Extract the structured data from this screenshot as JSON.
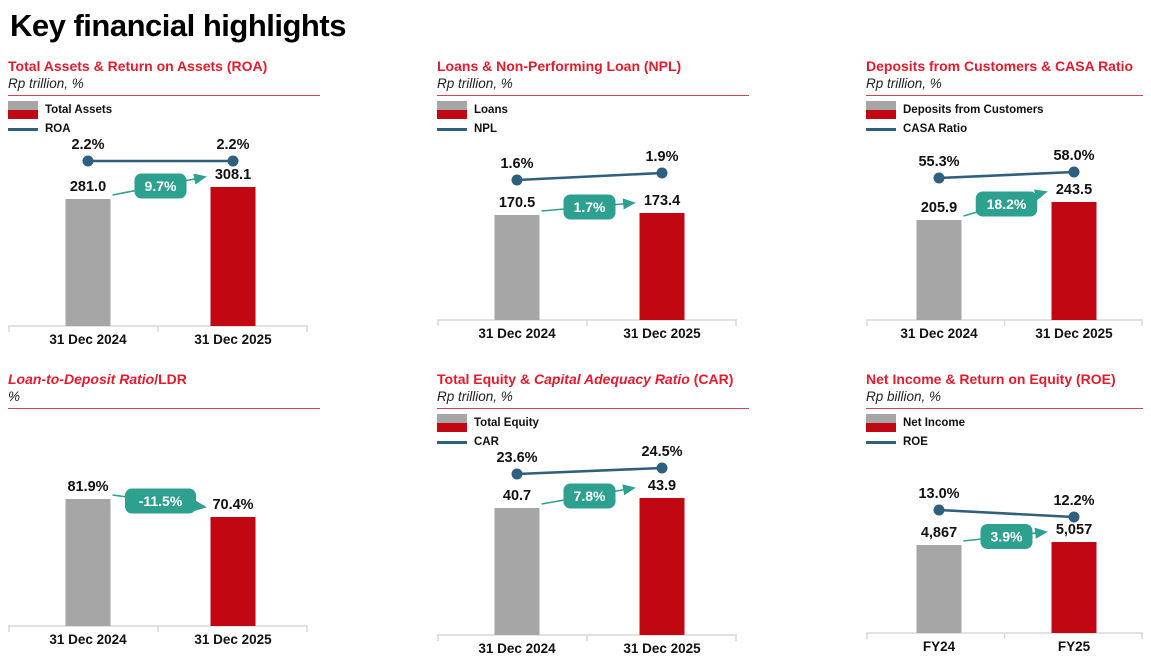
{
  "page": {
    "title": "Key financial highlights"
  },
  "colors": {
    "title_red": "#E41B2C",
    "rule_red": "#D04553",
    "bar_prev": "#A6A6A6",
    "bar_curr": "#C00712",
    "line_blue": "#2E5F7F",
    "badge_teal": "#2EA08F",
    "badge_text": "#FFFFFF",
    "axis_gray": "#D9D9D9",
    "label_dark": "#111111"
  },
  "chart_data": [
    {
      "id": "total-assets-roa",
      "type": "bar-line",
      "title_parts": [
        {
          "text": "Total Assets & Return on Assets (ROA)",
          "italic": false
        }
      ],
      "subtitle": "Rp trillion, %",
      "categories": [
        "31 Dec 2024",
        "31 Dec 2025"
      ],
      "bar_series": {
        "name": "Total Assets",
        "values": [
          281.0,
          308.1
        ],
        "labels": [
          "281.0",
          "308.1"
        ]
      },
      "line_series": {
        "name": "ROA",
        "values": [
          2.2,
          2.2
        ],
        "labels": [
          "2.2%",
          "2.2%"
        ]
      },
      "growth_badge": "9.7%",
      "show_legend": true
    },
    {
      "id": "loans-npl",
      "type": "bar-line",
      "title_parts": [
        {
          "text": "Loans & Non-Performing Loan (NPL)",
          "italic": false
        }
      ],
      "subtitle": "Rp trillion, %",
      "categories": [
        "31 Dec 2024",
        "31 Dec 2025"
      ],
      "bar_series": {
        "name": "Loans",
        "values": [
          170.5,
          173.4
        ],
        "labels": [
          "170.5",
          "173.4"
        ]
      },
      "line_series": {
        "name": "NPL",
        "values": [
          1.6,
          1.9
        ],
        "labels": [
          "1.6%",
          "1.9%"
        ]
      },
      "growth_badge": "1.7%",
      "show_legend": true
    },
    {
      "id": "deposits-casa",
      "type": "bar-line",
      "title_parts": [
        {
          "text": "Deposits from Customers & CASA Ratio",
          "italic": false
        }
      ],
      "subtitle": "Rp trillion, %",
      "categories": [
        "31 Dec 2024",
        "31 Dec 2025"
      ],
      "bar_series": {
        "name": "Deposits from Customers",
        "values": [
          205.9,
          243.5
        ],
        "labels": [
          "205.9",
          "243.5"
        ]
      },
      "line_series": {
        "name": "CASA Ratio",
        "values": [
          55.3,
          58.0
        ],
        "labels": [
          "55.3%",
          "58.0%"
        ]
      },
      "growth_badge": "18.2%",
      "show_legend": true
    },
    {
      "id": "ldr",
      "type": "bar",
      "title_parts": [
        {
          "text": "Loan-to-Deposit Ratio",
          "italic": true
        },
        {
          "text": "/LDR",
          "italic": false
        }
      ],
      "subtitle": "%",
      "categories": [
        "31 Dec 2024",
        "31 Dec 2025"
      ],
      "bar_series": {
        "values": [
          81.9,
          70.4
        ],
        "labels": [
          "81.9%",
          "70.4%"
        ]
      },
      "line_series": null,
      "growth_badge": "-11.5%",
      "show_legend": false
    },
    {
      "id": "equity-car",
      "type": "bar-line",
      "title_parts": [
        {
          "text": "Total Equity & ",
          "italic": false
        },
        {
          "text": "Capital Adequacy Ratio",
          "italic": true
        },
        {
          "text": " (CAR)",
          "italic": false
        }
      ],
      "subtitle": "Rp trillion, %",
      "categories": [
        "31 Dec 2024",
        "31 Dec 2025"
      ],
      "bar_series": {
        "name": "Total Equity",
        "values": [
          40.7,
          43.9
        ],
        "labels": [
          "40.7",
          "43.9"
        ]
      },
      "line_series": {
        "name": "CAR",
        "values": [
          23.6,
          24.5
        ],
        "labels": [
          "23.6%",
          "24.5%"
        ]
      },
      "growth_badge": "7.8%",
      "show_legend": true
    },
    {
      "id": "net-income-roe",
      "type": "bar-line",
      "title_parts": [
        {
          "text": "Net Income & Return on Equity (ROE)",
          "italic": false
        }
      ],
      "subtitle": "Rp billion, %",
      "categories": [
        "FY24",
        "FY25"
      ],
      "bar_series": {
        "name": "Net Income",
        "values": [
          4867,
          5057
        ],
        "labels": [
          "4,867",
          "5,057"
        ]
      },
      "line_series": {
        "name": "ROE",
        "values": [
          13.0,
          12.2
        ],
        "labels": [
          "13.0%",
          "12.2%"
        ]
      },
      "growth_badge": "3.9%",
      "show_legend": true
    }
  ]
}
